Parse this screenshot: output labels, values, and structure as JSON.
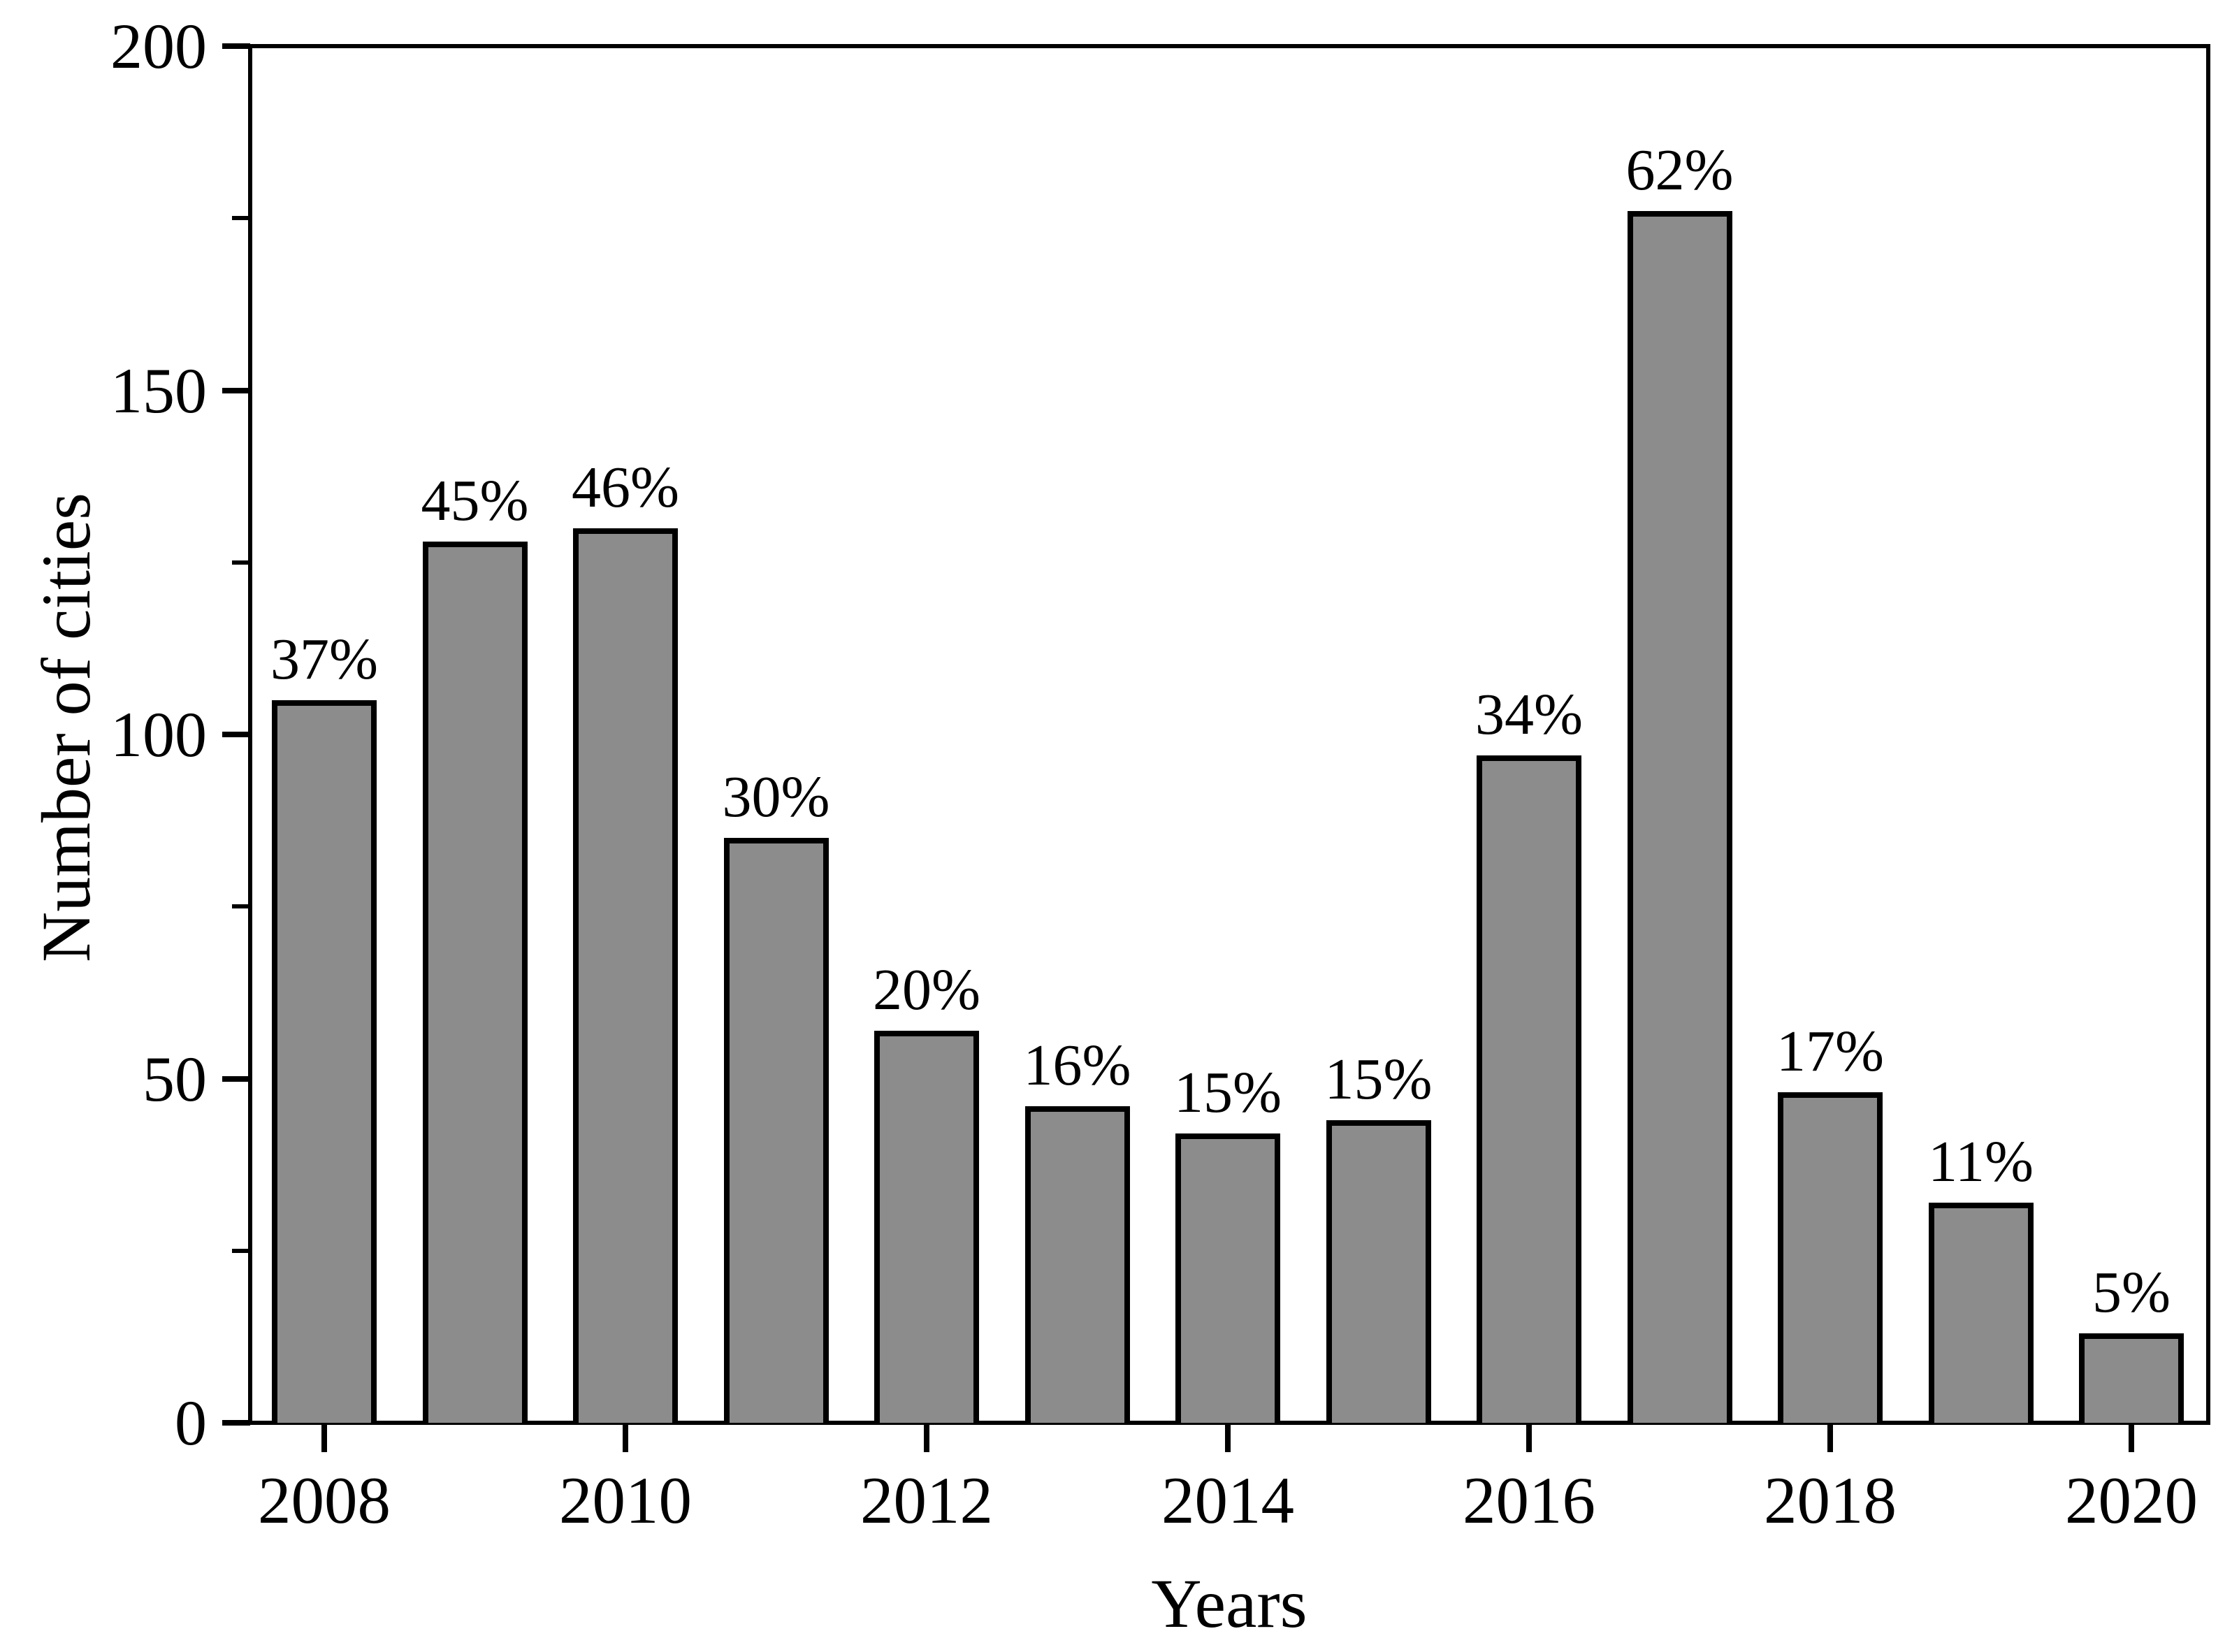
{
  "page": {
    "background": "#ffffff",
    "text_color": "#000000"
  },
  "chart_data": {
    "type": "bar",
    "title": "",
    "xlabel": "Years",
    "ylabel": "Number of cities",
    "categories": [
      "2008",
      "2009",
      "2010",
      "2011",
      "2012",
      "2013",
      "2014",
      "2015",
      "2016",
      "2017",
      "2018",
      "2019",
      "2020"
    ],
    "values": [
      105,
      128,
      130,
      85,
      57,
      46,
      42,
      44,
      97,
      176,
      48,
      32,
      13
    ],
    "bar_labels": [
      "37%",
      "45%",
      "46%",
      "30%",
      "20%",
      "16%",
      "15%",
      "15%",
      "34%",
      "62%",
      "17%",
      "11%",
      "5%"
    ],
    "ylim": [
      0,
      200
    ],
    "y_major_ticks": [
      0,
      50,
      100,
      150,
      200
    ],
    "y_major_tick_labels": [
      "0",
      "50",
      "100",
      "150",
      "200"
    ],
    "y_minor_ticks": [
      25,
      75,
      125,
      175
    ],
    "x_labeled_categories": [
      "2008",
      "2010",
      "2012",
      "2014",
      "2016",
      "2018",
      "2020"
    ],
    "x_label_every": 2,
    "bar_fill": "#8c8c8c",
    "bar_stroke": "#000000",
    "grid": false,
    "legend": null
  }
}
